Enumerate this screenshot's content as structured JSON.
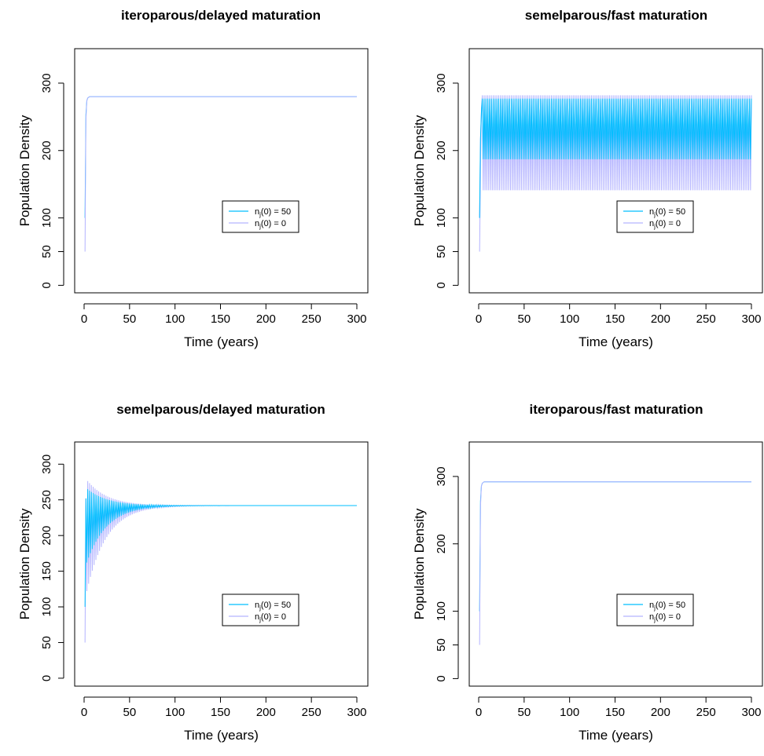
{
  "colors": {
    "series_a": "#00BFFF",
    "series_b": "#B3B3FF",
    "axis": "#000000"
  },
  "chart_data": [
    {
      "type": "line",
      "title": "iteroparous/delayed maturation",
      "xlabel": "Time (years)",
      "ylabel": "Population Density",
      "xlim": [
        0,
        300
      ],
      "ylim": [
        -10,
        350
      ],
      "x_ticks": [
        0,
        50,
        100,
        150,
        200,
        250,
        300
      ],
      "y_ticks": [
        0,
        50,
        100,
        200,
        300
      ],
      "legend": {
        "position": "bottom-right",
        "entries": [
          {
            "prefix": "n",
            "sub": "j",
            "suffix": "(0) = 50"
          },
          {
            "prefix": "n",
            "sub": "j",
            "suffix": "(0) = 0"
          }
        ]
      },
      "series": [
        {
          "initial": 100,
          "behavior": "converge",
          "equilibrium": 280,
          "color": "#00BFFF"
        },
        {
          "initial": 50,
          "behavior": "converge",
          "equilibrium": 280,
          "color": "#B3B3FF"
        }
      ]
    },
    {
      "type": "line",
      "title": "semelparous/fast maturation",
      "xlabel": "Time (years)",
      "ylabel": "Population Density",
      "xlim": [
        0,
        300
      ],
      "ylim": [
        -10,
        350
      ],
      "x_ticks": [
        0,
        50,
        100,
        150,
        200,
        250,
        300
      ],
      "y_ticks": [
        0,
        50,
        100,
        200,
        300
      ],
      "legend": {
        "position": "bottom-right",
        "entries": [
          {
            "prefix": "n",
            "sub": "j",
            "suffix": "(0) = 50"
          },
          {
            "prefix": "n",
            "sub": "j",
            "suffix": "(0) = 0"
          }
        ]
      },
      "series": [
        {
          "initial": 100,
          "behavior": "oscillate",
          "high": 275,
          "low": 187,
          "color": "#B3B3FF",
          "role": "n_j(0) = 0 band A"
        },
        {
          "initial": 50,
          "behavior": "oscillate",
          "high": 282,
          "low": 141,
          "color": "#B3B3FF"
        },
        {
          "initial": 100,
          "behavior": "oscillate",
          "high": 277,
          "low": 187,
          "color": "#00BFFF"
        }
      ]
    },
    {
      "type": "line",
      "title": "semelparous/delayed maturation",
      "xlabel": "Time (years)",
      "ylabel": "Population Density",
      "xlim": [
        0,
        300
      ],
      "ylim": [
        -10,
        330
      ],
      "x_ticks": [
        0,
        50,
        100,
        150,
        200,
        250,
        300
      ],
      "y_ticks": [
        0,
        50,
        100,
        150,
        200,
        250,
        300
      ],
      "legend": {
        "position": "bottom-right",
        "entries": [
          {
            "prefix": "n",
            "sub": "j",
            "suffix": "(0) = 50"
          },
          {
            "prefix": "n",
            "sub": "j",
            "suffix": "(0) = 0"
          }
        ]
      },
      "series": [
        {
          "initial": 50,
          "behavior": "damped",
          "equilibrium": 242,
          "amplitude": 120,
          "decay": 22,
          "color": "#B3B3FF"
        },
        {
          "initial": 100,
          "behavior": "damped",
          "equilibrium": 242,
          "amplitude": 80,
          "decay": 22,
          "color": "#00BFFF"
        }
      ]
    },
    {
      "type": "line",
      "title": "iteroparous/fast maturation",
      "xlabel": "Time (years)",
      "ylabel": "Population Density",
      "xlim": [
        0,
        300
      ],
      "ylim": [
        -10,
        350
      ],
      "x_ticks": [
        0,
        50,
        100,
        150,
        200,
        250,
        300
      ],
      "y_ticks": [
        0,
        50,
        100,
        200,
        300
      ],
      "legend": {
        "position": "bottom-right",
        "entries": [
          {
            "prefix": "n",
            "sub": "j",
            "suffix": "(0) = 50"
          },
          {
            "prefix": "n",
            "sub": "j",
            "suffix": "(0) = 0"
          }
        ]
      },
      "series": [
        {
          "initial": 100,
          "behavior": "converge",
          "equilibrium": 292,
          "color": "#00BFFF"
        },
        {
          "initial": 50,
          "behavior": "converge",
          "equilibrium": 292,
          "color": "#B3B3FF"
        }
      ]
    }
  ]
}
